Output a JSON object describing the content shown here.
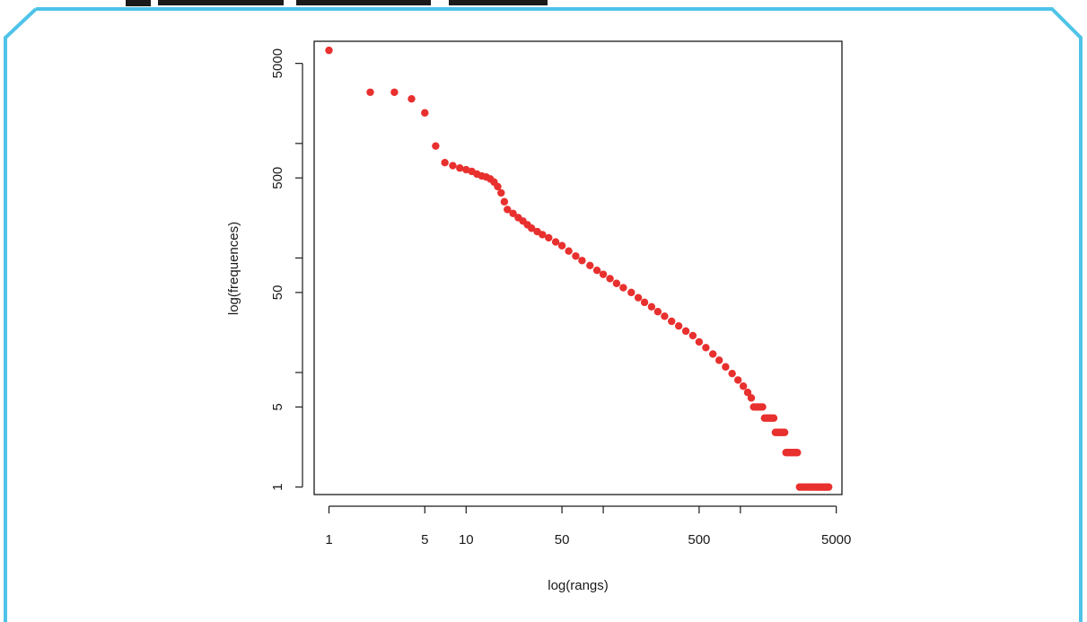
{
  "frame_color": "#4fc3e8",
  "chart_data": {
    "type": "scatter",
    "title": "",
    "xlabel": "log(rangs)",
    "ylabel": "log(frequences)",
    "x_scale": "log",
    "y_scale": "log",
    "xlim": [
      0.78,
      5500
    ],
    "ylim": [
      0.86,
      7800
    ],
    "x_ticks": [
      1,
      5,
      10,
      50,
      100,
      500,
      1000,
      5000
    ],
    "x_tick_labels": [
      "1",
      "5",
      "10",
      "50",
      "",
      "500",
      "",
      "5000"
    ],
    "y_ticks": [
      1,
      5,
      10,
      50,
      100,
      500,
      1000,
      5000
    ],
    "y_tick_labels": [
      "1",
      "5",
      "",
      "50",
      "",
      "500",
      "",
      "5000"
    ],
    "grid": false,
    "marker_color": "#e8302e",
    "series": [
      {
        "points": [
          [
            1,
            6500
          ],
          [
            2,
            2800
          ],
          [
            3,
            2800
          ],
          [
            4,
            2450
          ],
          [
            5,
            1850
          ],
          [
            6,
            950
          ],
          [
            7,
            680
          ],
          [
            8,
            640
          ],
          [
            9,
            610
          ],
          [
            10,
            590
          ],
          [
            11,
            570
          ],
          [
            12,
            540
          ],
          [
            13,
            520
          ],
          [
            14,
            510
          ],
          [
            15,
            490
          ],
          [
            16,
            460
          ],
          [
            17,
            420
          ],
          [
            18,
            370
          ],
          [
            19,
            310
          ],
          [
            20,
            265
          ],
          [
            22,
            245
          ],
          [
            24,
            225
          ],
          [
            26,
            210
          ],
          [
            28,
            195
          ],
          [
            30,
            182
          ],
          [
            33,
            170
          ],
          [
            36,
            160
          ],
          [
            40,
            150
          ],
          [
            45,
            138
          ],
          [
            50,
            128
          ],
          [
            56,
            115
          ],
          [
            63,
            104
          ],
          [
            70,
            95
          ],
          [
            80,
            86
          ],
          [
            90,
            78
          ],
          [
            100,
            72
          ],
          [
            112,
            66
          ],
          [
            125,
            60
          ],
          [
            140,
            55
          ],
          [
            160,
            50
          ],
          [
            180,
            45
          ],
          [
            200,
            41
          ],
          [
            225,
            37.5
          ],
          [
            250,
            34
          ],
          [
            280,
            31
          ],
          [
            315,
            28
          ],
          [
            355,
            25.5
          ],
          [
            400,
            23
          ],
          [
            450,
            21
          ],
          [
            500,
            18.5
          ],
          [
            560,
            16.5
          ],
          [
            630,
            14.5
          ],
          [
            700,
            12.8
          ],
          [
            780,
            11.2
          ],
          [
            870,
            9.8
          ],
          [
            960,
            8.6
          ],
          [
            1050,
            7.6
          ],
          [
            1130,
            6.7
          ],
          [
            1200,
            6
          ],
          [
            1250,
            5
          ],
          [
            1300,
            5
          ],
          [
            1350,
            5
          ],
          [
            1400,
            5
          ],
          [
            1450,
            5
          ],
          [
            1500,
            4
          ],
          [
            1550,
            4
          ],
          [
            1600,
            4
          ],
          [
            1650,
            4
          ],
          [
            1700,
            4
          ],
          [
            1750,
            4
          ],
          [
            1800,
            3
          ],
          [
            1850,
            3
          ],
          [
            1900,
            3
          ],
          [
            1950,
            3
          ],
          [
            2000,
            3
          ],
          [
            2050,
            3
          ],
          [
            2100,
            3
          ],
          [
            2150,
            2
          ],
          [
            2200,
            2
          ],
          [
            2250,
            2
          ],
          [
            2300,
            2
          ],
          [
            2350,
            2
          ],
          [
            2400,
            2
          ],
          [
            2450,
            2
          ],
          [
            2500,
            2
          ],
          [
            2550,
            2
          ],
          [
            2600,
            2
          ],
          [
            2700,
            1
          ],
          [
            2800,
            1
          ],
          [
            2900,
            1
          ],
          [
            3000,
            1
          ],
          [
            3100,
            1
          ],
          [
            3200,
            1
          ],
          [
            3300,
            1
          ],
          [
            3400,
            1
          ],
          [
            3500,
            1
          ],
          [
            3600,
            1
          ],
          [
            3700,
            1
          ],
          [
            3800,
            1
          ],
          [
            3900,
            1
          ],
          [
            4000,
            1
          ],
          [
            4100,
            1
          ],
          [
            4200,
            1
          ],
          [
            4300,
            1
          ],
          [
            4400,
            1
          ]
        ]
      }
    ]
  }
}
